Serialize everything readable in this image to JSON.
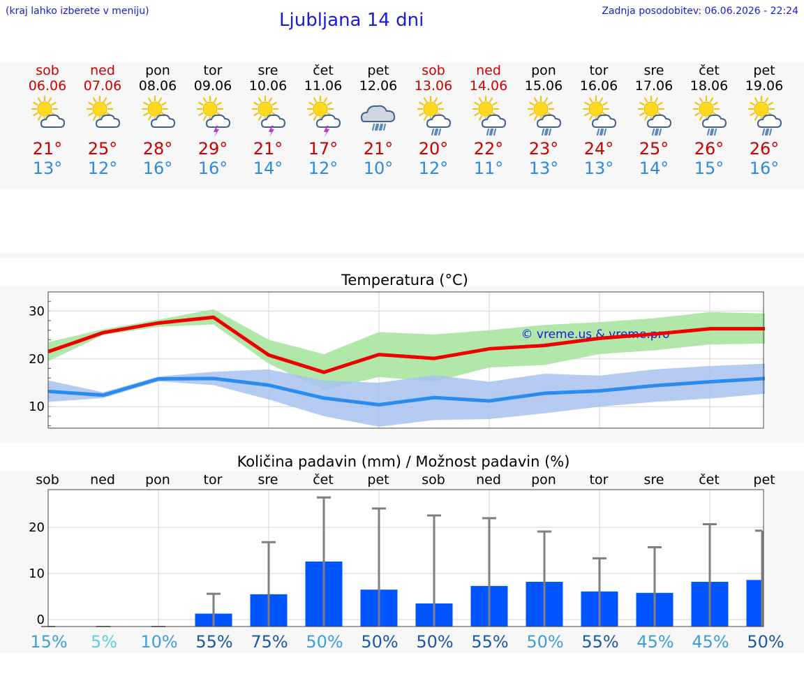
{
  "header": {
    "hint": "(kraj lahko izberete v meniju)",
    "title": "Ljubljana 14 dni",
    "updated": "Zadnja posodobitev: 06.06.2026 - 22:24"
  },
  "colors": {
    "link": "#1a1adc",
    "weekend": "#cc0000",
    "tmax": "#cc0000",
    "tmin": "#2b8be0",
    "bar": "#0055ff",
    "max_band": "#a8e6a0",
    "min_band": "#a8c2f0"
  },
  "days": [
    {
      "name": "sob",
      "date": "06.06",
      "weekend": true,
      "icon": "sun-cloud-icon",
      "tmax": "21°",
      "tmin": "13°"
    },
    {
      "name": "ned",
      "date": "07.06",
      "weekend": true,
      "icon": "sun-cloud-icon",
      "tmax": "25°",
      "tmin": "12°"
    },
    {
      "name": "pon",
      "date": "08.06",
      "weekend": false,
      "icon": "sun-cloud-icon",
      "tmax": "28°",
      "tmin": "16°"
    },
    {
      "name": "tor",
      "date": "09.06",
      "weekend": false,
      "icon": "sun-cloud-thunder-icon",
      "tmax": "29°",
      "tmin": "16°"
    },
    {
      "name": "sre",
      "date": "10.06",
      "weekend": false,
      "icon": "sun-cloud-thunder-icon",
      "tmax": "21°",
      "tmin": "14°"
    },
    {
      "name": "čet",
      "date": "11.06",
      "weekend": false,
      "icon": "sun-cloud-thunder-icon",
      "tmax": "17°",
      "tmin": "12°"
    },
    {
      "name": "pet",
      "date": "12.06",
      "weekend": false,
      "icon": "cloud-rain-icon",
      "tmax": "21°",
      "tmin": "10°"
    },
    {
      "name": "sob",
      "date": "13.06",
      "weekend": true,
      "icon": "sun-cloud-rain-icon",
      "tmax": "20°",
      "tmin": "12°"
    },
    {
      "name": "ned",
      "date": "14.06",
      "weekend": true,
      "icon": "sun-cloud-rain-icon",
      "tmax": "22°",
      "tmin": "11°"
    },
    {
      "name": "pon",
      "date": "15.06",
      "weekend": false,
      "icon": "sun-cloud-rain-icon",
      "tmax": "23°",
      "tmin": "13°"
    },
    {
      "name": "tor",
      "date": "16.06",
      "weekend": false,
      "icon": "sun-cloud-rain-icon",
      "tmax": "24°",
      "tmin": "13°"
    },
    {
      "name": "sre",
      "date": "17.06",
      "weekend": false,
      "icon": "sun-cloud-rain-icon",
      "tmax": "25°",
      "tmin": "14°"
    },
    {
      "name": "čet",
      "date": "18.06",
      "weekend": false,
      "icon": "sun-cloud-rain-icon",
      "tmax": "26°",
      "tmin": "15°"
    },
    {
      "name": "pet",
      "date": "19.06",
      "weekend": false,
      "icon": "sun-cloud-rain-icon",
      "tmax": "26°",
      "tmin": "16°"
    }
  ],
  "chart_data": [
    {
      "type": "line",
      "title": "Temperatura (°C)",
      "watermark": "© vreme.us & vreme.pro",
      "x": [
        0,
        1,
        2,
        3,
        4,
        5,
        6,
        7,
        8,
        9,
        10,
        11,
        12,
        13
      ],
      "ylim": [
        5.5,
        34
      ],
      "yticks": [
        10,
        20,
        30
      ],
      "grid": true,
      "series": [
        {
          "role": "max",
          "values": [
            21.5,
            25.5,
            27.5,
            28.7,
            20.8,
            17.2,
            20.9,
            20.1,
            22.1,
            22.8,
            24.3,
            25.2,
            26.3,
            26.3
          ],
          "band_low": [
            19.5,
            25.0,
            26.7,
            27.2,
            19.0,
            13.5,
            16.2,
            15.2,
            18.2,
            18.7,
            21.0,
            21.8,
            23.0,
            23.2
          ],
          "band_high": [
            23.5,
            26.2,
            28.2,
            30.4,
            24.0,
            21.0,
            25.6,
            25.1,
            26.0,
            27.1,
            27.7,
            28.5,
            29.8,
            29.5
          ]
        },
        {
          "role": "min",
          "values": [
            13.2,
            12.4,
            15.8,
            15.9,
            14.5,
            11.8,
            10.4,
            11.9,
            11.2,
            12.8,
            13.3,
            14.4,
            15.2,
            15.9
          ],
          "band_low": [
            11.0,
            11.8,
            15.3,
            14.5,
            11.5,
            8.0,
            5.8,
            7.2,
            7.4,
            8.6,
            10.0,
            11.0,
            11.7,
            12.7
          ],
          "band_high": [
            15.5,
            13.0,
            16.3,
            17.3,
            17.8,
            15.5,
            15.0,
            16.6,
            15.2,
            16.9,
            16.5,
            17.8,
            18.5,
            19.0
          ]
        }
      ]
    },
    {
      "type": "bar",
      "title": "Količina padavin (mm) / Možnost padavin (%)",
      "categories": [
        "sob",
        "ned",
        "pon",
        "tor",
        "sre",
        "čet",
        "pet",
        "sob",
        "ned",
        "pon",
        "tor",
        "sre",
        "čet",
        "pet"
      ],
      "ylim": [
        -1.5,
        28.2
      ],
      "yticks": [
        0,
        10,
        20
      ],
      "grid": true,
      "values": [
        0.0,
        0.0,
        0.0,
        1.3,
        5.5,
        12.6,
        6.5,
        3.5,
        7.3,
        8.2,
        6.1,
        5.8,
        8.2,
        8.6
      ],
      "upper": [
        0.0,
        0.1,
        0.1,
        5.6,
        16.8,
        26.5,
        24.1,
        22.6,
        22.0,
        19.1,
        13.3,
        15.7,
        20.7,
        19.3
      ],
      "chance": [
        "15%",
        "5%",
        "10%",
        "55%",
        "75%",
        "50%",
        "50%",
        "50%",
        "55%",
        "50%",
        "55%",
        "45%",
        "45%",
        "50%"
      ],
      "chance_colors": [
        "#3d9fd9",
        "#5cd0df",
        "#3d9fd9",
        "#1a58a8",
        "#1a58a8",
        "#3d9fd9",
        "#1a58a8",
        "#1a58a8",
        "#1a58a8",
        "#3d9fd9",
        "#1a58a8",
        "#3d9fd9",
        "#3d9fd9",
        "#1a58a8"
      ]
    }
  ]
}
